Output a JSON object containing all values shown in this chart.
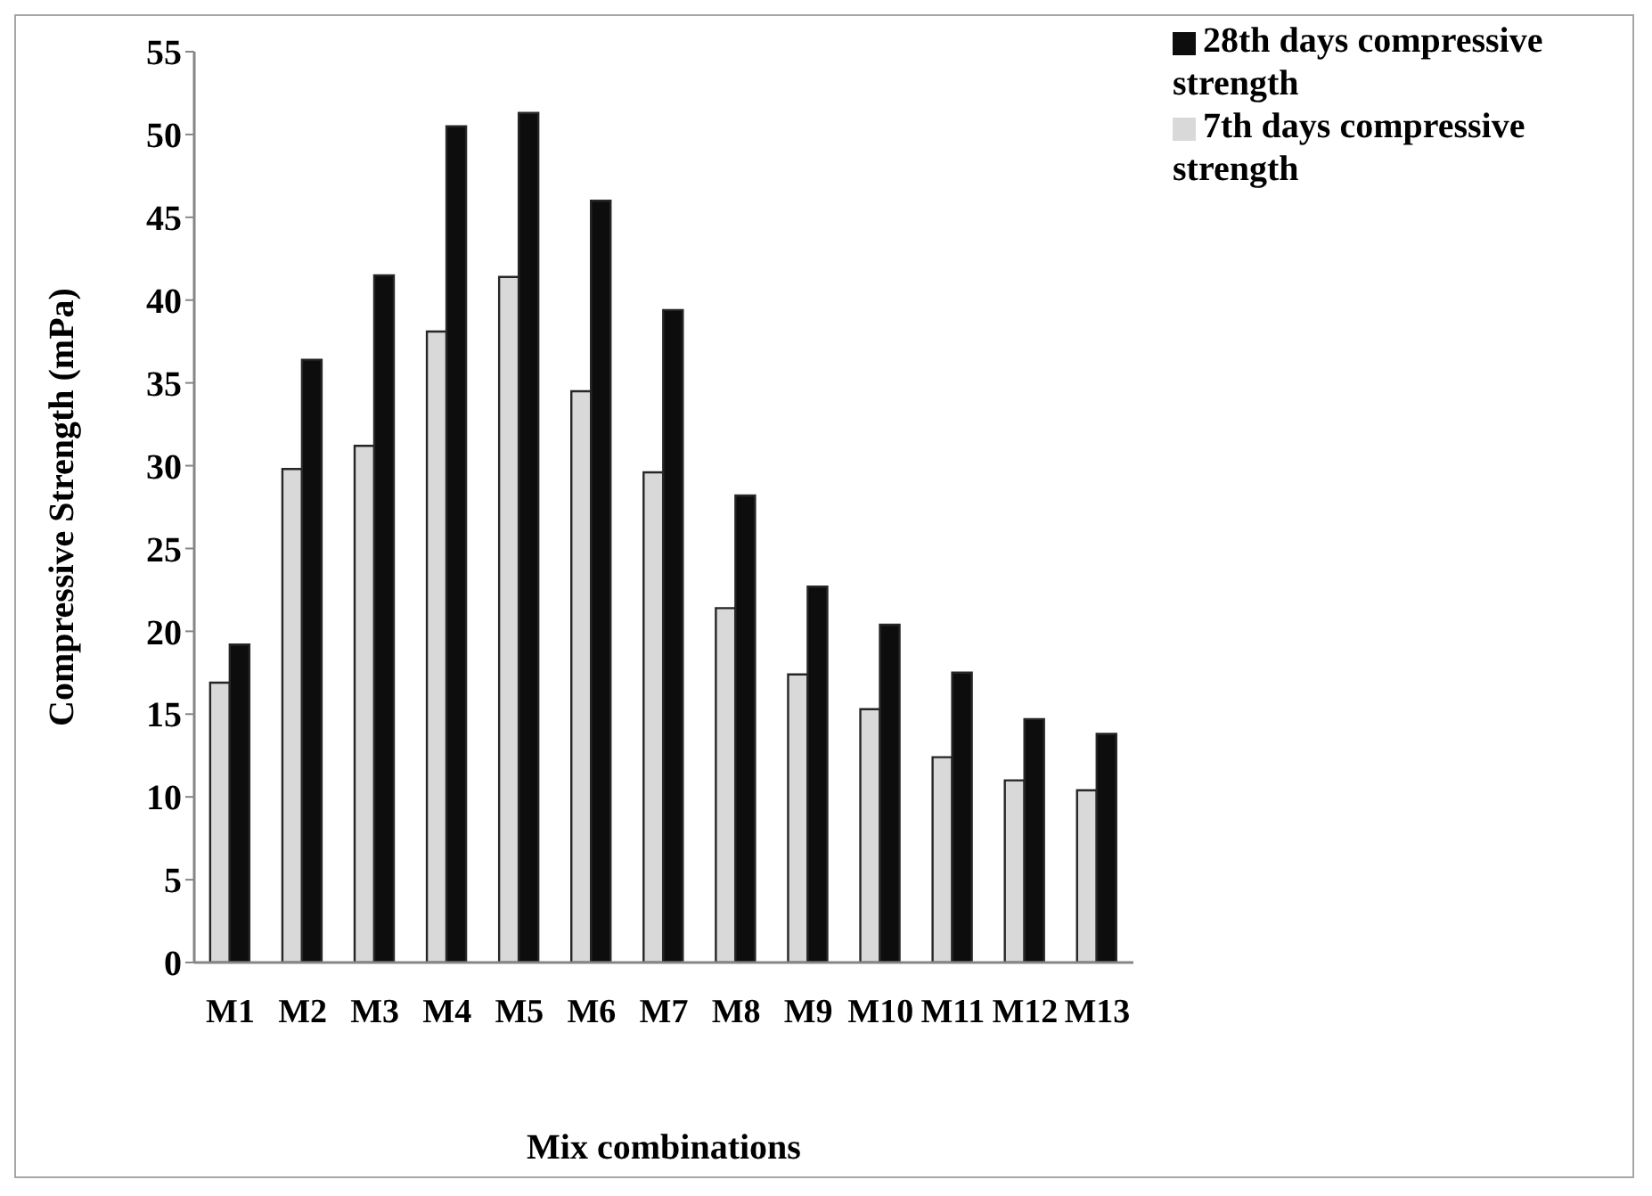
{
  "chart_data": {
    "type": "bar",
    "xlabel": "Mix combinations",
    "ylabel": "Compressive Strength (mPa)",
    "categories": [
      "M1",
      "M2",
      "M3",
      "M4",
      "M5",
      "M6",
      "M7",
      "M8",
      "M9",
      "M10",
      "M11",
      "M12",
      "M13"
    ],
    "series": [
      {
        "name": "7th days compressive strength",
        "color": "#d9d9d9",
        "values": [
          16.9,
          29.8,
          31.2,
          38.1,
          41.4,
          34.5,
          29.6,
          21.4,
          17.4,
          15.3,
          12.4,
          11.0,
          10.4
        ]
      },
      {
        "name": "28th days compressive strength",
        "color": "#0d0d0d",
        "values": [
          19.2,
          36.4,
          41.5,
          50.5,
          51.3,
          46.0,
          39.4,
          28.2,
          22.7,
          20.4,
          17.5,
          14.7,
          13.8
        ]
      }
    ],
    "ylim": [
      0,
      55
    ],
    "yticks": [
      0,
      5,
      10,
      15,
      20,
      25,
      30,
      35,
      40,
      45,
      50,
      55
    ],
    "grid": false,
    "legend": "top right"
  }
}
